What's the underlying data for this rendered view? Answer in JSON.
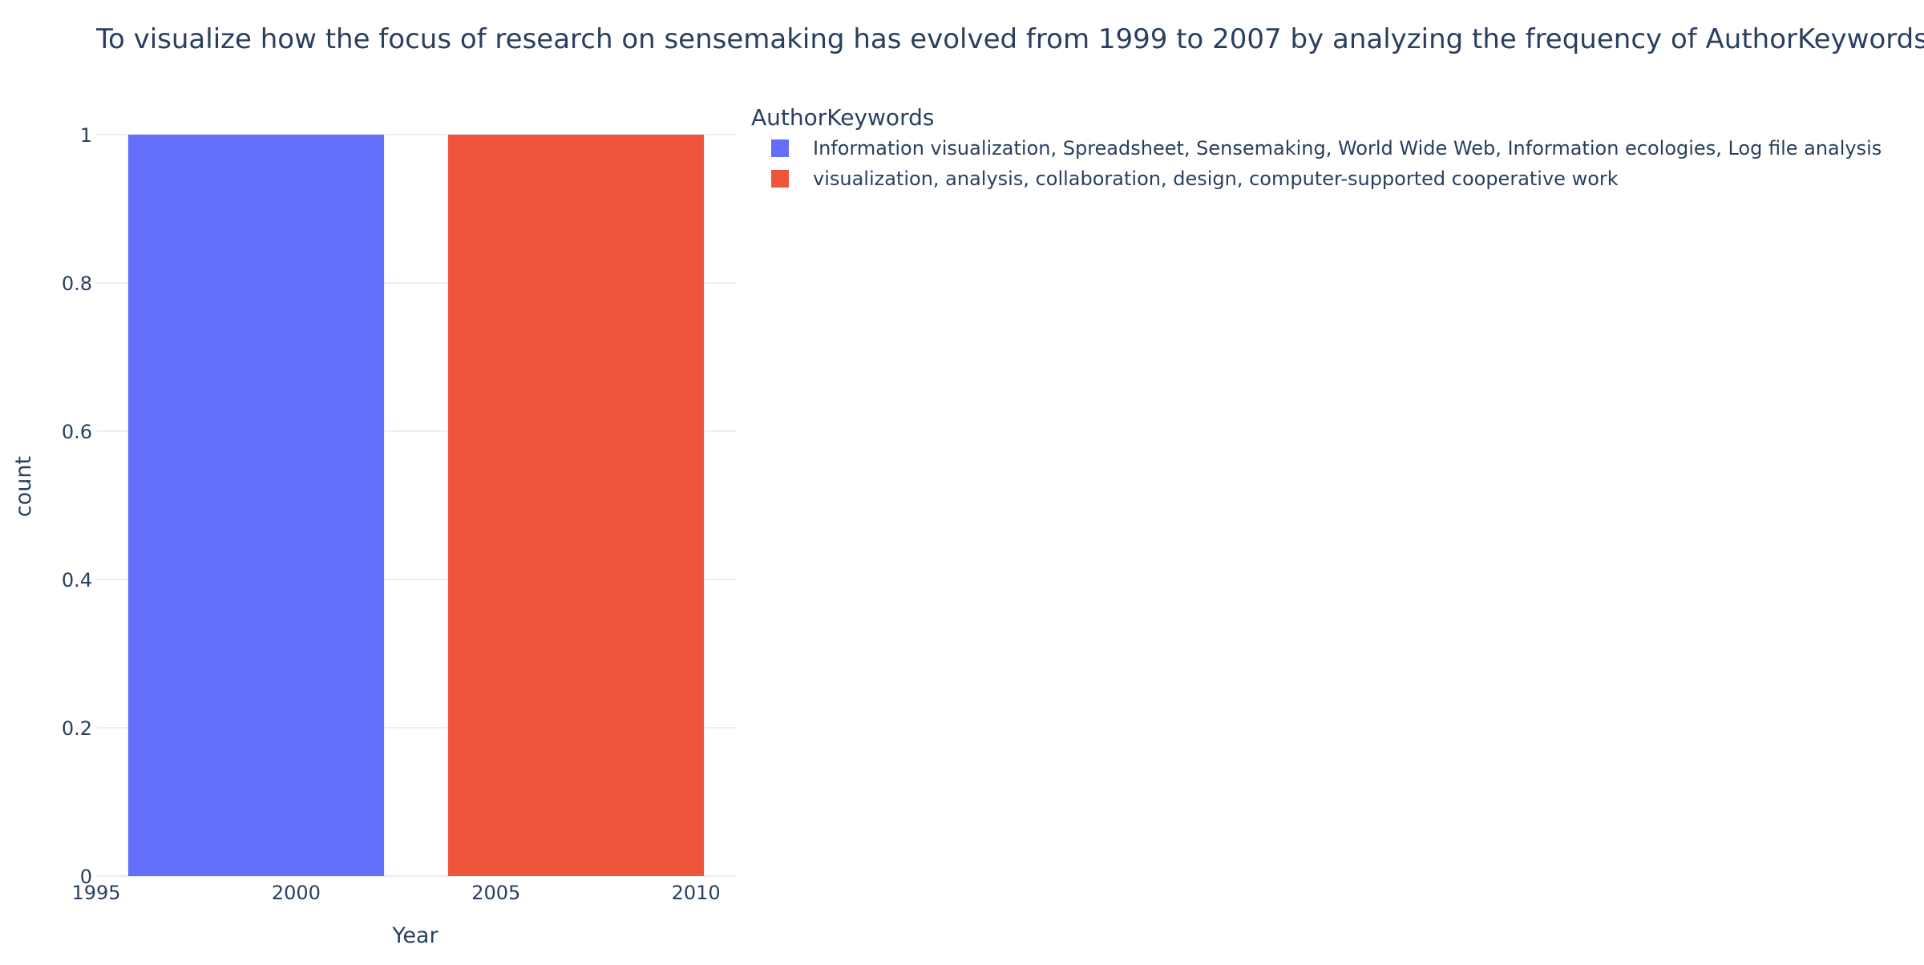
{
  "chart_data": {
    "type": "bar",
    "title": "To visualize how the focus of research on sensemaking has evolved from 1999 to 2007 by analyzing the frequency of AuthorKeywords",
    "xlabel": "Year",
    "ylabel": "count",
    "xlim": [
      1995,
      2011
    ],
    "ylim": [
      0,
      1
    ],
    "x_ticks": [
      1995,
      2000,
      2005,
      2010
    ],
    "y_ticks": [
      0,
      0.2,
      0.4,
      0.6,
      0.8,
      1
    ],
    "x_tick_labels": [
      "1995",
      "2000",
      "2005",
      "2010"
    ],
    "y_tick_labels": [
      "0",
      "0.2",
      "0.4",
      "0.6",
      "0.8",
      "1"
    ],
    "grid": true,
    "legend": {
      "title": "AuthorKeywords",
      "placement": "top-right"
    },
    "series": [
      {
        "name": "Information visualization, Spreadsheet, Sensemaking, World Wide Web, Information ecologies, Log file analysis",
        "color": "#636efa",
        "points": [
          {
            "x": 1999,
            "y": 1
          }
        ]
      },
      {
        "name": "visualization, analysis, collaboration, design, computer-supported cooperative work",
        "color": "#ef553b",
        "points": [
          {
            "x": 2007,
            "y": 1
          }
        ]
      }
    ]
  },
  "colors": {
    "text": "#2a3f5f",
    "grid": "#ebf0f8",
    "axis_line": "#ebf0f8",
    "background": "#ffffff"
  }
}
